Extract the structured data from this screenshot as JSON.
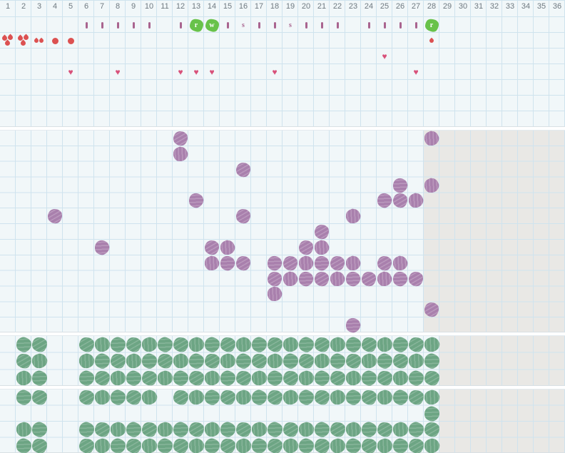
{
  "colors": {
    "panel_bg": "#f1f7f9",
    "grid_line": "#cfe3ee",
    "future_shade": "#e9e8e5",
    "day_text": "#6e7980",
    "tick_mauve": "#a9648f",
    "badge_green": "#68c24a",
    "badge_letter": "#ffffff",
    "blood_red": "#dc5151",
    "heart_pink": "#d8517a",
    "purple_scribble": "#a980ad",
    "green_scribble": "#6da584"
  },
  "top_panel": {
    "days": [
      1,
      2,
      3,
      4,
      5,
      6,
      7,
      8,
      9,
      10,
      11,
      12,
      13,
      14,
      15,
      16,
      17,
      18,
      19,
      20,
      21,
      22,
      23,
      24,
      25,
      26,
      27,
      28,
      29,
      30,
      31,
      32,
      33,
      34,
      35,
      36
    ],
    "markers": [
      {
        "day": 6,
        "type": "tick"
      },
      {
        "day": 7,
        "type": "tick"
      },
      {
        "day": 8,
        "type": "tick"
      },
      {
        "day": 9,
        "type": "tick"
      },
      {
        "day": 10,
        "type": "tick"
      },
      {
        "day": 12,
        "type": "tick"
      },
      {
        "day": 13,
        "type": "badge",
        "label": "r"
      },
      {
        "day": 14,
        "type": "badge",
        "label": "w"
      },
      {
        "day": 15,
        "type": "tick"
      },
      {
        "day": 16,
        "type": "letter",
        "label": "s"
      },
      {
        "day": 17,
        "type": "tick"
      },
      {
        "day": 18,
        "type": "tick"
      },
      {
        "day": 19,
        "type": "letter",
        "label": "s"
      },
      {
        "day": 20,
        "type": "tick"
      },
      {
        "day": 21,
        "type": "tick"
      },
      {
        "day": 22,
        "type": "tick"
      },
      {
        "day": 24,
        "type": "tick"
      },
      {
        "day": 25,
        "type": "tick"
      },
      {
        "day": 26,
        "type": "tick"
      },
      {
        "day": 27,
        "type": "tick"
      },
      {
        "day": 28,
        "type": "badge",
        "label": "r"
      }
    ],
    "flow": [
      {
        "day": 1,
        "icon": "drops-3"
      },
      {
        "day": 2,
        "icon": "drops-3"
      },
      {
        "day": 3,
        "icon": "drops-2"
      },
      {
        "day": 4,
        "icon": "dot"
      },
      {
        "day": 5,
        "icon": "dot"
      },
      {
        "day": 28,
        "icon": "droplet"
      }
    ],
    "hearts_upper": [
      25
    ],
    "hearts_lower": [
      5,
      8,
      12,
      13,
      14,
      18,
      27
    ]
  },
  "cycle_panel": {
    "shaded_from_day": 28,
    "rows": [
      [
        12,
        28
      ],
      [
        12
      ],
      [
        16
      ],
      [
        26,
        28
      ],
      [
        13,
        25,
        26,
        27
      ],
      [
        4,
        16,
        23
      ],
      [
        21
      ],
      [
        7,
        14,
        15,
        20,
        21
      ],
      [
        14,
        15,
        16,
        18,
        19,
        20,
        21,
        22,
        23,
        25,
        26
      ],
      [
        18,
        19,
        20,
        21,
        22,
        23,
        24,
        25,
        26,
        27
      ],
      [
        18
      ],
      [
        28
      ],
      [
        23
      ]
    ]
  },
  "leaf_panel_a": {
    "shaded_from_day": 29,
    "rows": [
      [
        2,
        3,
        [
          6,
          28
        ]
      ],
      [
        2,
        3,
        [
          6,
          28
        ]
      ],
      [
        2,
        3,
        [
          6,
          28
        ]
      ]
    ]
  },
  "leaf_panel_b": {
    "shaded_from_day": 29,
    "rows": [
      [
        2,
        3,
        [
          6,
          10
        ],
        [
          12,
          28
        ]
      ],
      [
        28
      ],
      [
        2,
        3,
        [
          6,
          28
        ]
      ],
      [
        2,
        3,
        [
          6,
          28
        ]
      ]
    ]
  }
}
